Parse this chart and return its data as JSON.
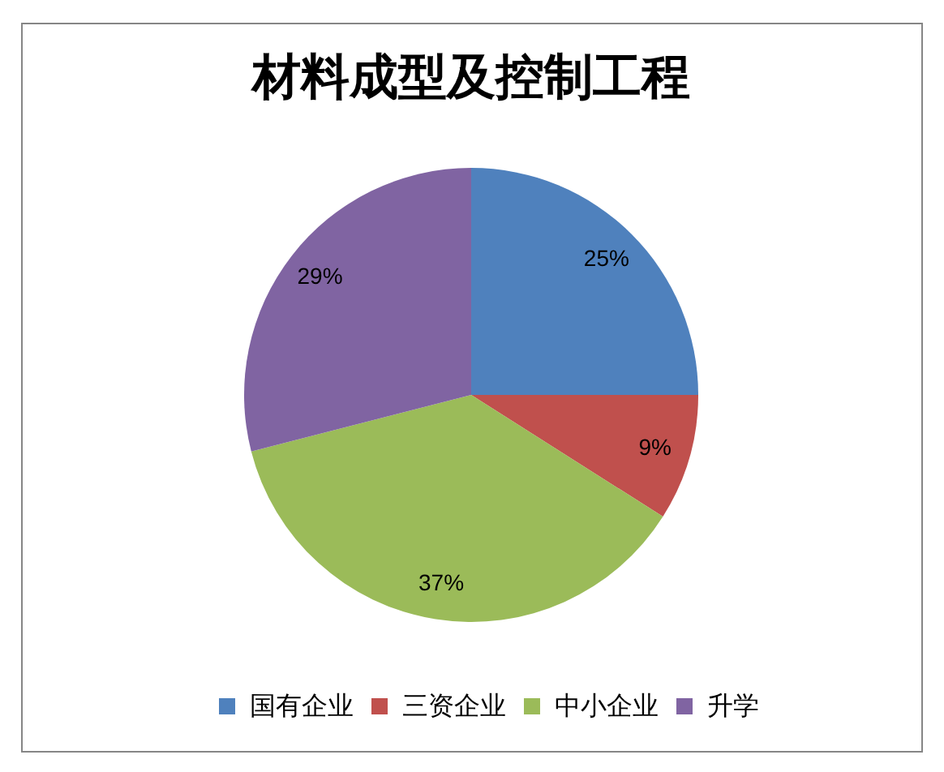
{
  "chart_data": {
    "type": "pie",
    "title": "材料成型及控制工程",
    "categories": [
      "国有企业",
      "三资企业",
      "中小企业",
      "升学"
    ],
    "values": [
      25,
      9,
      37,
      29
    ],
    "colors": [
      "#4f81bd",
      "#c0504d",
      "#9bbb59",
      "#8064a2"
    ],
    "value_labels": [
      "25%",
      "9%",
      "37%",
      "29%"
    ],
    "legend": "bottom"
  }
}
